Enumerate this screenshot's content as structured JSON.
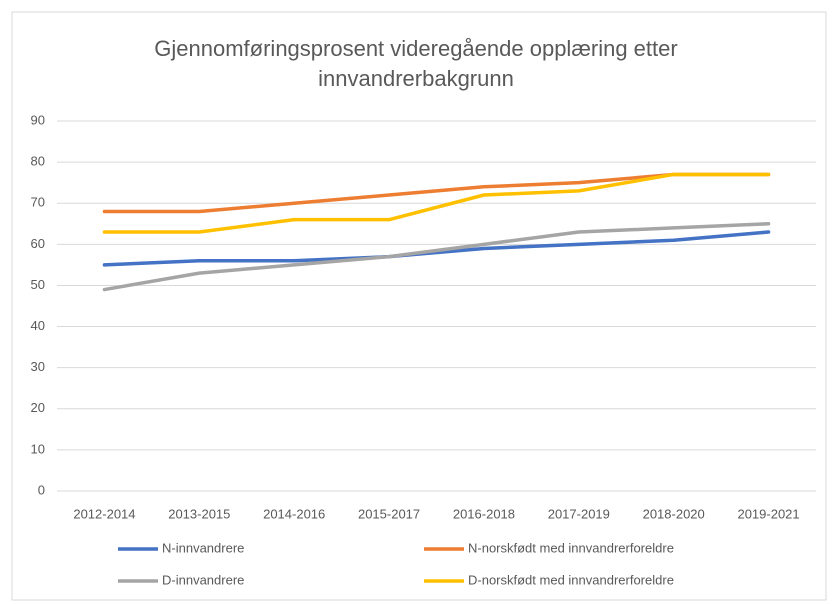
{
  "chart_data": {
    "type": "line",
    "title": "Gjennomføringsprosent videregående opplæring etter innvandrerbakgrunn",
    "categories": [
      "2012-2014",
      "2013-2015",
      "2014-2016",
      "2015-2017",
      "2016-2018",
      "2017-2019",
      "2018-2020",
      "2019-2021"
    ],
    "series": [
      {
        "name": "N-innvandrere",
        "color": "#4472c4",
        "values": [
          55,
          56,
          56,
          57,
          59,
          60,
          61,
          63
        ]
      },
      {
        "name": "N-norskfødt med innvandrerforeldre",
        "color": "#ed7d31",
        "values": [
          68,
          68,
          70,
          72,
          74,
          75,
          77,
          77
        ]
      },
      {
        "name": "D-innvandrere",
        "color": "#a5a5a5",
        "values": [
          49,
          53,
          55,
          57,
          60,
          63,
          64,
          65
        ]
      },
      {
        "name": "D-norskfødt med innvandrerforeldre",
        "color": "#ffc000",
        "values": [
          63,
          63,
          66,
          66,
          72,
          73,
          77,
          77
        ]
      }
    ],
    "ylim": [
      0,
      90
    ],
    "yticks": [
      0,
      10,
      20,
      30,
      40,
      50,
      60,
      70,
      80,
      90
    ],
    "grid": true,
    "legend": "bottom"
  }
}
